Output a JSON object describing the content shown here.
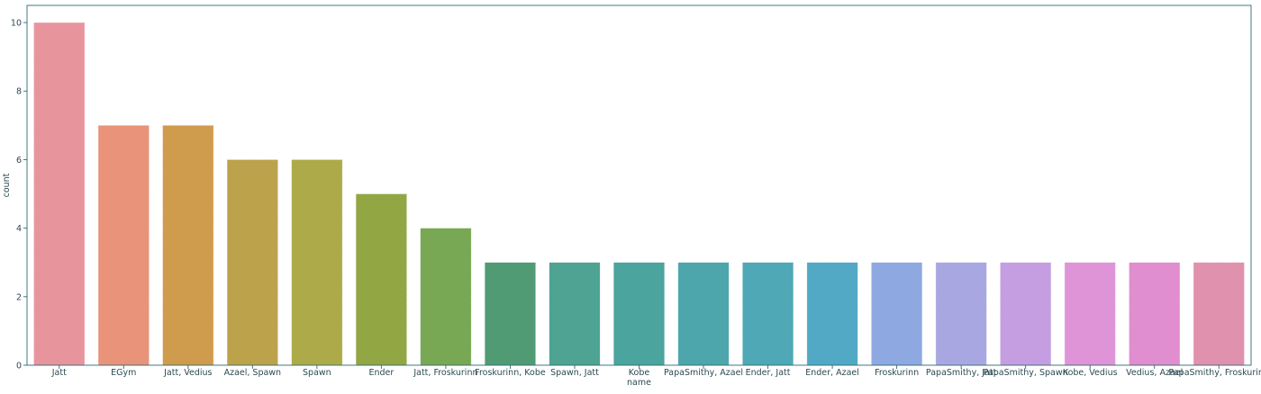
{
  "chart_data": {
    "type": "bar",
    "title": "",
    "xlabel": "name",
    "ylabel": "count",
    "ylim": [
      0,
      10.5
    ],
    "yticks": [
      0,
      2,
      4,
      6,
      8,
      10
    ],
    "grid": false,
    "categories": [
      "Jatt",
      "EGym",
      "Jatt, Vedius",
      "Azael, Spawn",
      "Spawn",
      "Ender",
      "Jatt, Froskurinn",
      "Froskurinn, Kobe",
      "Spawn, Jatt",
      "Kobe",
      "PapaSmithy, Azael",
      "Ender, Jatt",
      "Ender, Azael",
      "Froskurinn",
      "PapaSmithy, Jatt",
      "PapaSmithy, Spawn",
      "Kobe, Vedius",
      "Vedius, Azael",
      "PapaSmithy, Froskurinn"
    ],
    "values": [
      10,
      7,
      7,
      6,
      6,
      5,
      4,
      3,
      3,
      3,
      3,
      3,
      3,
      3,
      3,
      3,
      3,
      3,
      3
    ],
    "colors": [
      "#e8949c",
      "#e8937a",
      "#cf9b4d",
      "#bda24c",
      "#adab49",
      "#92a644",
      "#78a854",
      "#509b74",
      "#4ea393",
      "#4ba49e",
      "#4ca6ac",
      "#4ea8b6",
      "#52a9c6",
      "#8ea9e1",
      "#a9a7e1",
      "#c59ee1",
      "#df94d8",
      "#e08ecf",
      "#e091ad"
    ],
    "axis_color": "#2c6b74"
  }
}
